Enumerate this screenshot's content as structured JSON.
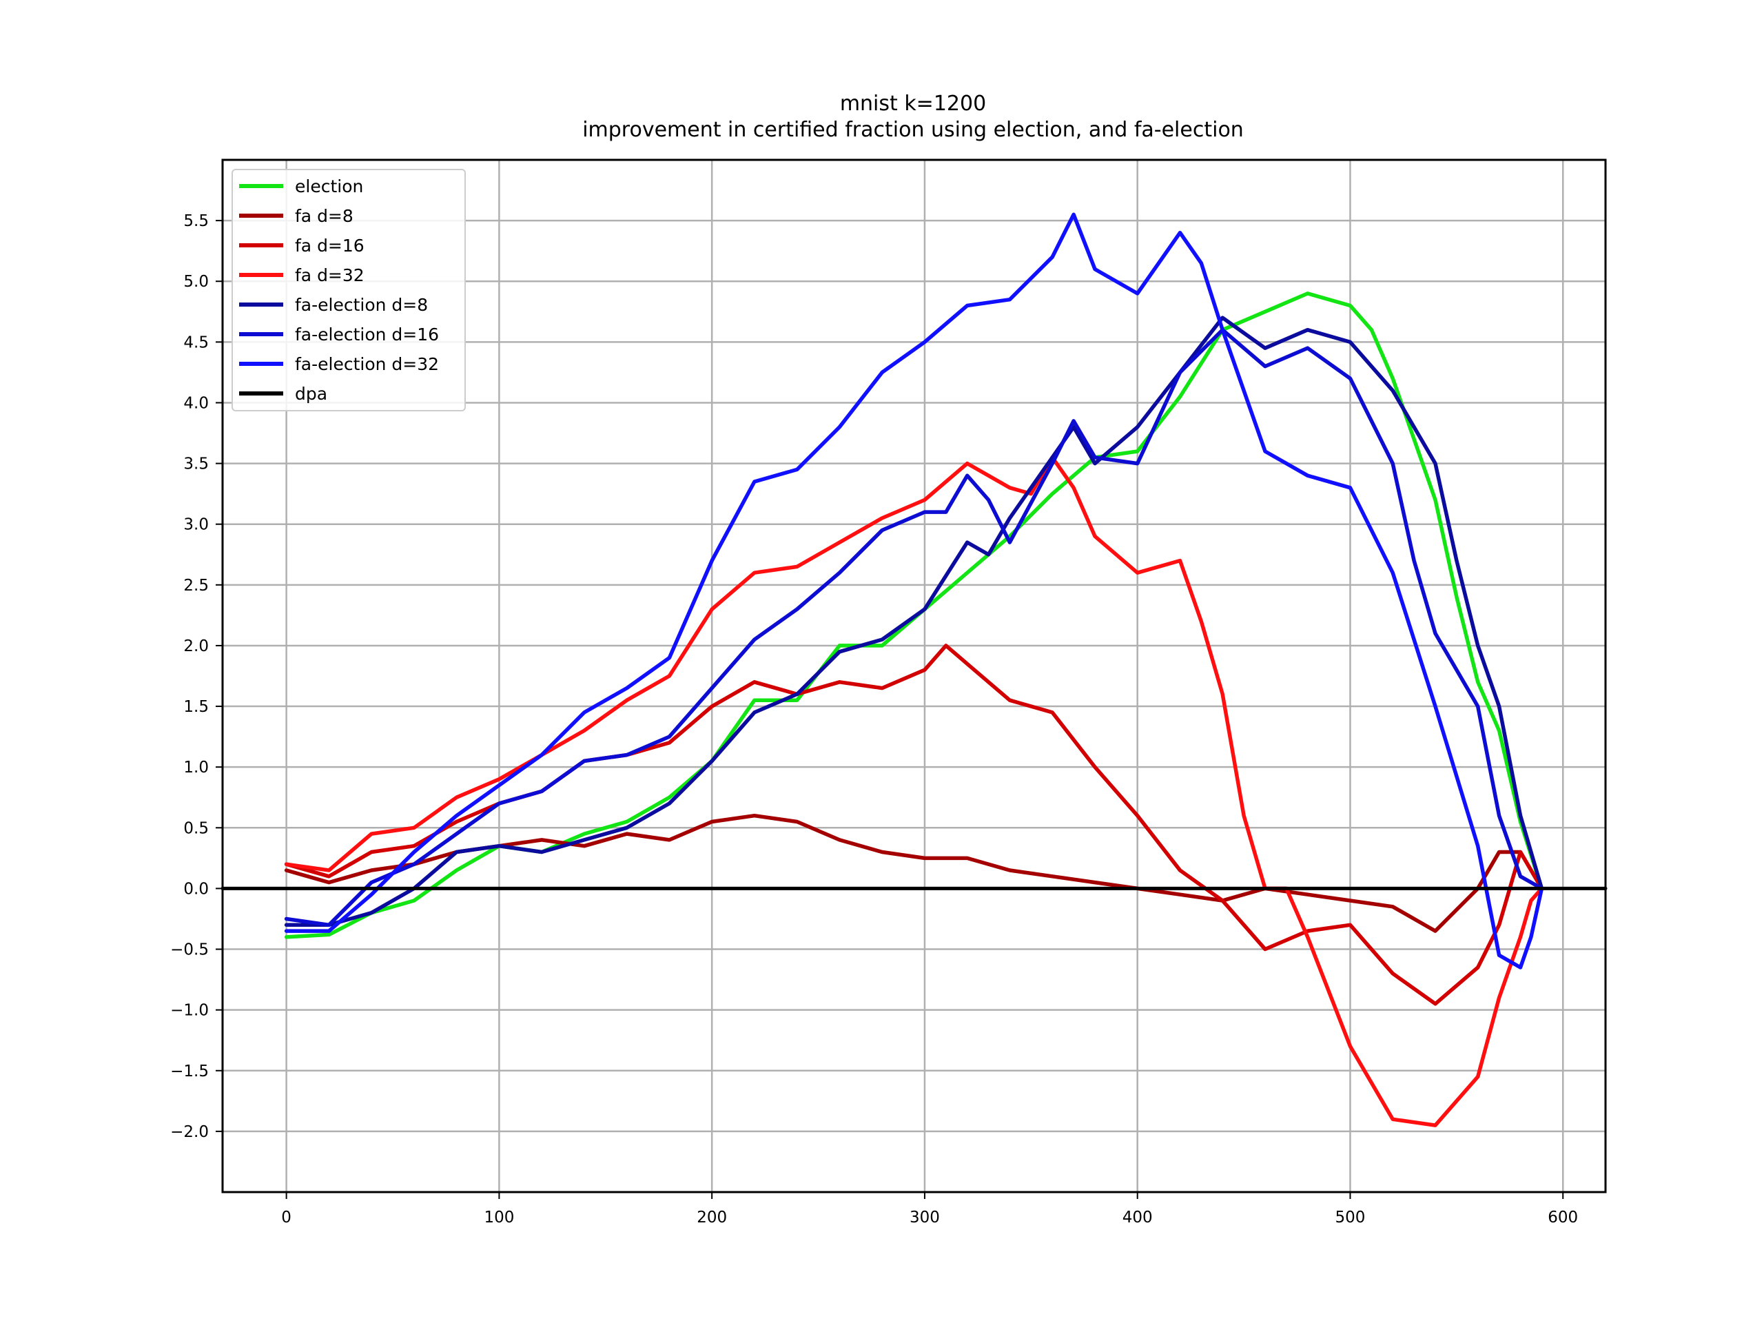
{
  "chart_data": {
    "type": "line",
    "title": "mnist k=1200",
    "subtitle": "improvement in certified fraction using election, and fa-election",
    "xlabel": "",
    "ylabel": "",
    "xlim": [
      -30,
      620
    ],
    "ylim": [
      -2.5,
      6.0
    ],
    "x_ticks": [
      0,
      100,
      200,
      300,
      400,
      500,
      600
    ],
    "x_tick_labels": [
      "0",
      "100",
      "200",
      "300",
      "400",
      "500",
      "600"
    ],
    "y_ticks": [
      -2.0,
      -1.5,
      -1.0,
      -0.5,
      0.0,
      0.5,
      1.0,
      1.5,
      2.0,
      2.5,
      3.0,
      3.5,
      4.0,
      4.5,
      5.0,
      5.5
    ],
    "y_tick_labels": [
      "−2.0",
      "−1.5",
      "−1.0",
      "−0.5",
      "0.0",
      "0.5",
      "1.0",
      "1.5",
      "2.0",
      "2.5",
      "3.0",
      "3.5",
      "4.0",
      "4.5",
      "5.0",
      "5.5"
    ],
    "grid": true,
    "legend_position": "top-left",
    "series": [
      {
        "name": "election",
        "color": "#13e413",
        "x": [
          0,
          20,
          40,
          60,
          80,
          100,
          120,
          140,
          160,
          180,
          200,
          220,
          240,
          260,
          280,
          300,
          320,
          340,
          360,
          380,
          400,
          420,
          440,
          460,
          480,
          500,
          510,
          520,
          530,
          540,
          550,
          560,
          570,
          580,
          590
        ],
        "y": [
          -0.4,
          -0.38,
          -0.2,
          -0.1,
          0.15,
          0.35,
          0.3,
          0.45,
          0.55,
          0.75,
          1.05,
          1.55,
          1.55,
          2.0,
          2.0,
          2.3,
          2.6,
          2.9,
          3.25,
          3.55,
          3.6,
          4.05,
          4.6,
          4.75,
          4.9,
          4.8,
          4.6,
          4.2,
          3.7,
          3.2,
          2.4,
          1.7,
          1.3,
          0.55,
          0.0
        ]
      },
      {
        "name": "fa d=8",
        "color": "#a50000",
        "x": [
          0,
          20,
          40,
          60,
          80,
          100,
          120,
          140,
          160,
          180,
          200,
          220,
          240,
          260,
          280,
          300,
          320,
          340,
          360,
          380,
          400,
          420,
          440,
          460,
          480,
          500,
          520,
          540,
          560,
          570,
          580,
          590
        ],
        "y": [
          0.15,
          0.05,
          0.15,
          0.2,
          0.3,
          0.35,
          0.4,
          0.35,
          0.45,
          0.4,
          0.55,
          0.6,
          0.55,
          0.4,
          0.3,
          0.25,
          0.25,
          0.15,
          0.1,
          0.05,
          0.0,
          -0.05,
          -0.1,
          0.0,
          -0.05,
          -0.1,
          -0.15,
          -0.35,
          0.0,
          0.3,
          0.3,
          0.0
        ]
      },
      {
        "name": "fa d=16",
        "color": "#d20000",
        "x": [
          0,
          20,
          40,
          60,
          80,
          100,
          120,
          140,
          160,
          180,
          200,
          220,
          240,
          260,
          280,
          300,
          310,
          320,
          340,
          360,
          380,
          400,
          420,
          440,
          460,
          480,
          500,
          520,
          540,
          560,
          570,
          580,
          590
        ],
        "y": [
          0.2,
          0.1,
          0.3,
          0.35,
          0.55,
          0.7,
          0.8,
          1.05,
          1.1,
          1.2,
          1.5,
          1.7,
          1.6,
          1.7,
          1.65,
          1.8,
          2.0,
          1.85,
          1.55,
          1.45,
          1.0,
          0.6,
          0.15,
          -0.1,
          -0.5,
          -0.35,
          -0.3,
          -0.7,
          -0.95,
          -0.65,
          -0.3,
          0.3,
          0.0
        ]
      },
      {
        "name": "fa d=32",
        "color": "#ff0f0f",
        "x": [
          0,
          20,
          40,
          60,
          80,
          100,
          120,
          140,
          160,
          180,
          200,
          220,
          240,
          260,
          280,
          300,
          320,
          340,
          350,
          360,
          370,
          380,
          400,
          420,
          430,
          440,
          450,
          460,
          470,
          480,
          500,
          520,
          540,
          560,
          570,
          580,
          585,
          590
        ],
        "y": [
          0.2,
          0.15,
          0.45,
          0.5,
          0.75,
          0.9,
          1.1,
          1.3,
          1.55,
          1.75,
          2.3,
          2.6,
          2.65,
          2.85,
          3.05,
          3.2,
          3.5,
          3.3,
          3.25,
          3.55,
          3.3,
          2.9,
          2.6,
          2.7,
          2.2,
          1.6,
          0.6,
          0.0,
          0.0,
          -0.4,
          -1.3,
          -1.9,
          -1.95,
          -1.55,
          -0.9,
          -0.4,
          -0.1,
          0.0
        ]
      },
      {
        "name": "fa-election d=8",
        "color": "#0b0b9d",
        "x": [
          0,
          20,
          40,
          60,
          80,
          100,
          120,
          140,
          160,
          180,
          200,
          220,
          240,
          260,
          280,
          300,
          320,
          330,
          340,
          360,
          370,
          380,
          400,
          420,
          440,
          460,
          480,
          500,
          520,
          540,
          550,
          560,
          570,
          580,
          590
        ],
        "y": [
          -0.3,
          -0.3,
          -0.2,
          0.0,
          0.3,
          0.35,
          0.3,
          0.4,
          0.5,
          0.7,
          1.05,
          1.45,
          1.6,
          1.95,
          2.05,
          2.3,
          2.85,
          2.75,
          3.05,
          3.55,
          3.8,
          3.5,
          3.8,
          4.25,
          4.7,
          4.45,
          4.6,
          4.5,
          4.1,
          3.5,
          2.7,
          2.0,
          1.5,
          0.6,
          0.0
        ]
      },
      {
        "name": "fa-election d=16",
        "color": "#0c0cd2",
        "x": [
          0,
          20,
          40,
          60,
          80,
          100,
          120,
          140,
          160,
          180,
          200,
          220,
          240,
          260,
          280,
          300,
          310,
          320,
          330,
          340,
          360,
          370,
          380,
          400,
          420,
          440,
          460,
          480,
          500,
          520,
          530,
          540,
          560,
          570,
          580,
          590
        ],
        "y": [
          -0.25,
          -0.3,
          0.05,
          0.2,
          0.45,
          0.7,
          0.8,
          1.05,
          1.1,
          1.25,
          1.65,
          2.05,
          2.3,
          2.6,
          2.95,
          3.1,
          3.1,
          3.4,
          3.2,
          2.85,
          3.5,
          3.85,
          3.55,
          3.5,
          4.25,
          4.6,
          4.3,
          4.45,
          4.2,
          3.5,
          2.7,
          2.1,
          1.5,
          0.6,
          0.1,
          0.0
        ]
      },
      {
        "name": "fa-election d=32",
        "color": "#1010ff",
        "x": [
          0,
          20,
          40,
          60,
          80,
          100,
          120,
          140,
          160,
          180,
          200,
          220,
          240,
          260,
          280,
          300,
          320,
          340,
          360,
          370,
          380,
          400,
          420,
          430,
          440,
          460,
          480,
          500,
          520,
          540,
          560,
          570,
          580,
          585,
          590
        ],
        "y": [
          -0.35,
          -0.35,
          -0.05,
          0.3,
          0.6,
          0.85,
          1.1,
          1.45,
          1.65,
          1.9,
          2.7,
          3.35,
          3.45,
          3.8,
          4.25,
          4.5,
          4.8,
          4.85,
          5.2,
          5.55,
          5.1,
          4.9,
          5.4,
          5.15,
          4.6,
          3.6,
          3.4,
          3.3,
          2.6,
          1.5,
          0.35,
          -0.55,
          -0.65,
          -0.4,
          0.0
        ]
      },
      {
        "name": "dpa",
        "color": "#000000",
        "x": [
          -30,
          620
        ],
        "y": [
          0.0,
          0.0
        ]
      }
    ]
  }
}
